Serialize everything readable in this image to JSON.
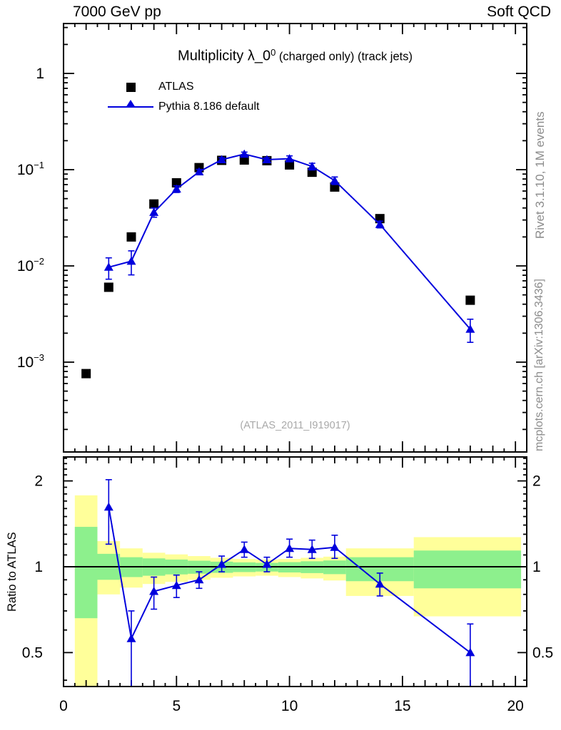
{
  "header": {
    "left": "7000 GeV pp",
    "right": "Soft QCD"
  },
  "title": {
    "main": "Multiplicity λ_0",
    "sup": "0",
    "suffix": " (charged only) (track jets)"
  },
  "legend": {
    "items": [
      {
        "label": "ATLAS",
        "marker": "square",
        "color": "#000000"
      },
      {
        "label": "Pythia 8.186 default",
        "marker": "triangle-line",
        "color": "#0000dd"
      }
    ]
  },
  "watermarks": {
    "rivet": "Rivet 3.1.10,  1M events",
    "mcplots": "mcplots.cern.ch [arXiv:1306.3436]",
    "analysis": "(ATLAS_2011_I919017)"
  },
  "ratio_panel_label": "Ratio to ATLAS",
  "colors": {
    "mc_blue": "#0000dd",
    "data_black": "#000000",
    "band_yellow": "#ffff9a",
    "band_green": "#8df08d",
    "frame": "#000000",
    "gray_text": "#8c8c8c"
  },
  "chart_data": {
    "type": "line",
    "title": "Multiplicity λ_0^0 (charged only) (track jets)",
    "x": [
      1,
      2,
      3,
      4,
      5,
      6,
      7,
      8,
      9,
      10,
      11,
      12,
      14,
      18
    ],
    "series": [
      {
        "name": "ATLAS",
        "marker": "square",
        "color": "#000000",
        "values": [
          0.00076,
          0.006,
          0.02,
          0.044,
          0.073,
          0.105,
          0.125,
          0.126,
          0.124,
          0.112,
          0.094,
          0.066,
          0.031,
          0.0044
        ]
      },
      {
        "name": "Pythia 8.186 default",
        "marker": "triangle",
        "color": "#0000dd",
        "values": [
          null,
          0.0097,
          0.0112,
          0.036,
          0.063,
          0.095,
          0.127,
          0.145,
          0.127,
          0.13,
          0.108,
          0.077,
          0.027,
          0.0022
        ],
        "rel_errors": [
          null,
          0.25,
          0.28,
          0.11,
          0.08,
          0.06,
          0.05,
          0.05,
          0.05,
          0.07,
          0.08,
          0.09,
          0.08,
          0.27
        ]
      }
    ],
    "x_axis": {
      "lim": [
        0,
        20.5
      ],
      "major_ticks": [
        0,
        5,
        10,
        15,
        20
      ],
      "minor_step": 0.5
    },
    "main_axis": {
      "scale": "log",
      "ylim": [
        0.000117,
        3.3
      ],
      "yticks": [
        {
          "v": 1,
          "label": "1"
        },
        {
          "v": 0.1,
          "base": "10",
          "exp": "−1"
        },
        {
          "v": 0.01,
          "base": "10",
          "exp": "−2"
        },
        {
          "v": 0.001,
          "base": "10",
          "exp": "−3"
        }
      ]
    },
    "ratio_panel": {
      "label": "Ratio to ATLAS",
      "scale": "log",
      "ylim": [
        0.38,
        2.42
      ],
      "yticks": [
        {
          "v": 2,
          "label": "2"
        },
        {
          "v": 1,
          "label": "1"
        },
        {
          "v": 0.5,
          "label": "0.5"
        }
      ],
      "unit_line": 1,
      "values": [
        null,
        1.62,
        0.56,
        0.82,
        0.86,
        0.9,
        1.02,
        1.15,
        1.02,
        1.16,
        1.15,
        1.17,
        0.87,
        0.5
      ],
      "err_up": [
        null,
        0.4,
        0.14,
        0.1,
        0.075,
        0.06,
        0.07,
        0.07,
        0.06,
        0.09,
        0.09,
        0.12,
        0.08,
        0.13
      ],
      "err_dn": [
        null,
        0.42,
        0.3,
        0.11,
        0.08,
        0.06,
        0.06,
        0.07,
        0.06,
        0.08,
        0.08,
        0.1,
        0.08,
        0.2
      ],
      "bands": [
        {
          "xlo": 0.5,
          "xhi": 1.5,
          "yellow": [
            0.3,
            1.78
          ],
          "green": [
            0.66,
            1.38
          ]
        },
        {
          "xlo": 1.5,
          "xhi": 2.5,
          "yellow": [
            0.8,
            1.23
          ],
          "green": [
            0.9,
            1.11
          ]
        },
        {
          "xlo": 2.5,
          "xhi": 3.5,
          "yellow": [
            0.845,
            1.16
          ],
          "green": [
            0.92,
            1.08
          ]
        },
        {
          "xlo": 3.5,
          "xhi": 4.5,
          "yellow": [
            0.87,
            1.12
          ],
          "green": [
            0.93,
            1.07
          ]
        },
        {
          "xlo": 4.5,
          "xhi": 5.5,
          "yellow": [
            0.885,
            1.105
          ],
          "green": [
            0.94,
            1.06
          ]
        },
        {
          "xlo": 5.5,
          "xhi": 6.5,
          "yellow": [
            0.9,
            1.09
          ],
          "green": [
            0.945,
            1.05
          ]
        },
        {
          "xlo": 6.5,
          "xhi": 7.5,
          "yellow": [
            0.915,
            1.075
          ],
          "green": [
            0.952,
            1.042
          ]
        },
        {
          "xlo": 7.5,
          "xhi": 8.5,
          "yellow": [
            0.925,
            1.065
          ],
          "green": [
            0.958,
            1.036
          ]
        },
        {
          "xlo": 8.5,
          "xhi": 9.5,
          "yellow": [
            0.93,
            1.06
          ],
          "green": [
            0.962,
            1.032
          ]
        },
        {
          "xlo": 9.5,
          "xhi": 10.5,
          "yellow": [
            0.92,
            1.065
          ],
          "green": [
            0.955,
            1.038
          ]
        },
        {
          "xlo": 10.5,
          "xhi": 11.5,
          "yellow": [
            0.91,
            1.075
          ],
          "green": [
            0.95,
            1.045
          ]
        },
        {
          "xlo": 11.5,
          "xhi": 12.5,
          "yellow": [
            0.895,
            1.085
          ],
          "green": [
            0.942,
            1.052
          ]
        },
        {
          "xlo": 12.5,
          "xhi": 15.5,
          "yellow": [
            0.79,
            1.16
          ],
          "green": [
            0.89,
            1.08
          ]
        },
        {
          "xlo": 15.5,
          "xhi": 20.25,
          "yellow": [
            0.67,
            1.27
          ],
          "green": [
            0.84,
            1.14
          ]
        }
      ]
    }
  }
}
